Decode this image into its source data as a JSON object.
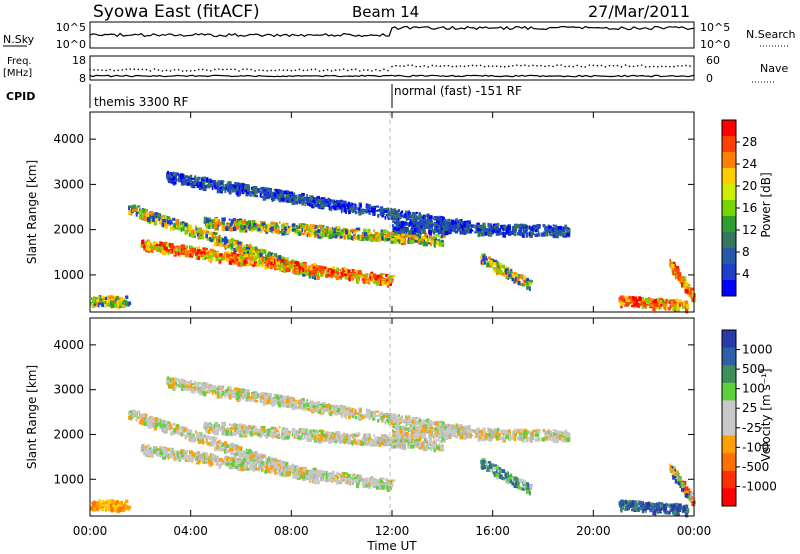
{
  "header": {
    "title": "Syowa East (fitACF)",
    "beam": "Beam 14",
    "date": "27/Mar/2011"
  },
  "top_panels": {
    "nsky_label": "N.Sky",
    "nsky_ticks": [
      "10^5",
      "10^0"
    ],
    "nsearch_label": "N.Search",
    "freq_label": "Freq.",
    "freq_unit": "[MHz]",
    "freq_ticks": [
      "18",
      "8"
    ],
    "nave_label": "Nave",
    "nave_ticks": [
      "60",
      "0"
    ],
    "cpid_label": "CPID",
    "cpid_segments": [
      "themis 3300 RF",
      "normal (fast) -151 RF"
    ]
  },
  "power_panel": {
    "ylabel": "Slant Range [km]",
    "colorbar_label": "Power [dB]",
    "colorbar_ticks": [
      "28",
      "24",
      "20",
      "16",
      "12",
      "8",
      "4"
    ],
    "colorbar_colors": [
      "#ff0000",
      "#ff4000",
      "#ff8000",
      "#ffcc00",
      "#ccee00",
      "#7ad400",
      "#2f9d2f",
      "#34775a",
      "#2859a8",
      "#1f3fc8",
      "#0000ff"
    ]
  },
  "velocity_panel": {
    "ylabel": "Slant Range [km]",
    "colorbar_label": "Velocity [m s⁻¹]",
    "colorbar_ticks": [
      "1000",
      "500",
      "100",
      "25",
      "-25",
      "-100",
      "-500",
      "-1000"
    ],
    "colorbar_colors": [
      "#2a3aa8",
      "#2f5fa8",
      "#3e8f5a",
      "#5dd13a",
      "#c8c8c8",
      "#c8c8c8",
      "#ffa000",
      "#ff7000",
      "#ff3000",
      "#ff0000"
    ]
  },
  "chart_data": {
    "type": "heatmap",
    "xlabel": "Time UT",
    "x_ticks": [
      "00:00",
      "04:00",
      "08:00",
      "12:00",
      "16:00",
      "20:00",
      "00:00"
    ],
    "x_range_hours": [
      0,
      24
    ],
    "y_ticks": [
      1000,
      2000,
      3000,
      4000
    ],
    "y_range_km": [
      180,
      4600
    ],
    "cpid_change_hour": 12,
    "echo_bands": [
      {
        "t0": 1.5,
        "t1": 9.0,
        "r0": 2500,
        "r1": 1050,
        "power": "mixed",
        "velocity": "grey"
      },
      {
        "t0": 2.0,
        "t1": 12.0,
        "r0": 1700,
        "r1": 900,
        "power": "strong",
        "velocity": "grey"
      },
      {
        "t0": 3.0,
        "t1": 15.0,
        "r0": 3200,
        "r1": 2100,
        "power": "weak",
        "velocity": "grey"
      },
      {
        "t0": 4.5,
        "t1": 14.0,
        "r0": 2200,
        "r1": 1800,
        "power": "mixed",
        "velocity": "grey"
      },
      {
        "t0": 12.0,
        "t1": 19.0,
        "r0": 2100,
        "r1": 2000,
        "power": "weak",
        "velocity": "grey"
      },
      {
        "t0": 15.5,
        "t1": 17.5,
        "r0": 1400,
        "r1": 800,
        "power": "mixed",
        "velocity": "green"
      },
      {
        "t0": 21.0,
        "t1": 23.7,
        "r0": 450,
        "r1": 350,
        "power": "strong",
        "velocity": "blue"
      },
      {
        "t0": 23.0,
        "t1": 24.0,
        "r0": 1300,
        "r1": 500,
        "power": "strong",
        "velocity": "mixed"
      },
      {
        "t0": 0.0,
        "t1": 1.5,
        "r0": 450,
        "r1": 450,
        "power": "mixed",
        "velocity": "orange"
      }
    ]
  }
}
